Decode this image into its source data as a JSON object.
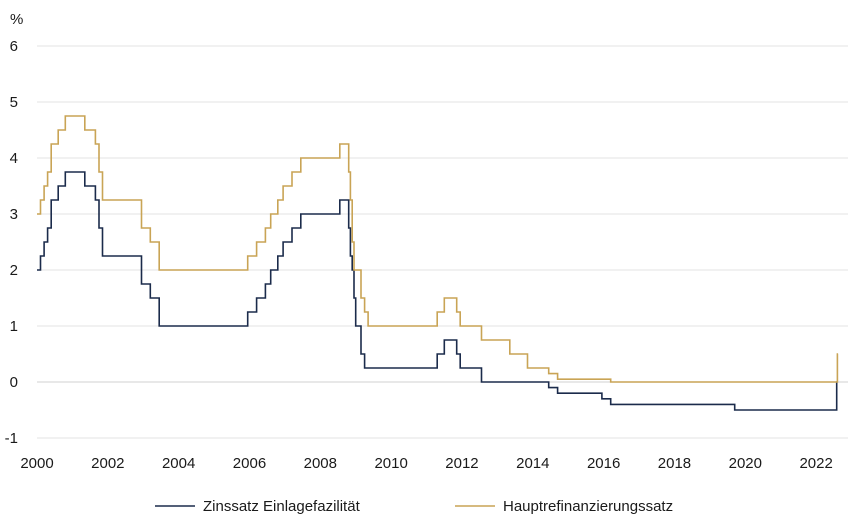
{
  "chart_data": {
    "type": "line",
    "title": "",
    "xlabel": "",
    "ylabel": "%",
    "xlim": [
      2000,
      2022.9
    ],
    "ylim": [
      -1,
      6
    ],
    "x_ticks": [
      "2000",
      "2002",
      "2004",
      "2006",
      "2008",
      "2010",
      "2012",
      "2014",
      "2016",
      "2018",
      "2020",
      "2022"
    ],
    "y_ticks": [
      "-1",
      "0",
      "1",
      "2",
      "3",
      "4",
      "5",
      "6"
    ],
    "grid": "horizontal",
    "legend_position": "bottom",
    "series": [
      {
        "name": "Zinssatz Einlagefazilität",
        "color": "#1b2b4b",
        "step": true,
        "points": [
          [
            2000.0,
            2.0
          ],
          [
            2000.1,
            2.25
          ],
          [
            2000.2,
            2.5
          ],
          [
            2000.3,
            2.75
          ],
          [
            2000.4,
            3.25
          ],
          [
            2000.6,
            3.5
          ],
          [
            2000.8,
            3.75
          ],
          [
            2001.35,
            3.5
          ],
          [
            2001.65,
            3.25
          ],
          [
            2001.75,
            2.75
          ],
          [
            2001.85,
            2.25
          ],
          [
            2002.95,
            1.75
          ],
          [
            2003.2,
            1.5
          ],
          [
            2003.45,
            1.0
          ],
          [
            2005.95,
            1.25
          ],
          [
            2006.2,
            1.5
          ],
          [
            2006.45,
            1.75
          ],
          [
            2006.6,
            2.0
          ],
          [
            2006.8,
            2.25
          ],
          [
            2006.95,
            2.5
          ],
          [
            2007.2,
            2.75
          ],
          [
            2007.45,
            3.0
          ],
          [
            2008.55,
            3.25
          ],
          [
            2008.8,
            2.75
          ],
          [
            2008.85,
            2.25
          ],
          [
            2008.9,
            2.0
          ],
          [
            2008.95,
            1.5
          ],
          [
            2009.0,
            1.0
          ],
          [
            2009.15,
            0.5
          ],
          [
            2009.25,
            0.25
          ],
          [
            2011.3,
            0.5
          ],
          [
            2011.5,
            0.75
          ],
          [
            2011.85,
            0.5
          ],
          [
            2011.95,
            0.25
          ],
          [
            2012.55,
            0.0
          ],
          [
            2014.45,
            -0.1
          ],
          [
            2014.7,
            -0.2
          ],
          [
            2015.95,
            -0.3
          ],
          [
            2016.2,
            -0.4
          ],
          [
            2019.7,
            -0.5
          ],
          [
            2022.55,
            -0.5
          ],
          [
            2022.58,
            0.0
          ],
          [
            2022.6,
            0.0
          ]
        ]
      },
      {
        "name": "Hauptrefinanzierungssatz",
        "color": "#c9a455",
        "step": true,
        "points": [
          [
            2000.0,
            3.0
          ],
          [
            2000.1,
            3.25
          ],
          [
            2000.2,
            3.5
          ],
          [
            2000.3,
            3.75
          ],
          [
            2000.4,
            4.25
          ],
          [
            2000.6,
            4.5
          ],
          [
            2000.8,
            4.75
          ],
          [
            2001.35,
            4.5
          ],
          [
            2001.65,
            4.25
          ],
          [
            2001.75,
            3.75
          ],
          [
            2001.85,
            3.25
          ],
          [
            2002.95,
            2.75
          ],
          [
            2003.2,
            2.5
          ],
          [
            2003.45,
            2.0
          ],
          [
            2005.95,
            2.25
          ],
          [
            2006.2,
            2.5
          ],
          [
            2006.45,
            2.75
          ],
          [
            2006.6,
            3.0
          ],
          [
            2006.8,
            3.25
          ],
          [
            2006.95,
            3.5
          ],
          [
            2007.2,
            3.75
          ],
          [
            2007.45,
            4.0
          ],
          [
            2008.55,
            4.25
          ],
          [
            2008.8,
            3.75
          ],
          [
            2008.85,
            3.25
          ],
          [
            2008.9,
            2.5
          ],
          [
            2008.95,
            2.0
          ],
          [
            2009.15,
            1.5
          ],
          [
            2009.25,
            1.25
          ],
          [
            2009.35,
            1.0
          ],
          [
            2011.3,
            1.25
          ],
          [
            2011.5,
            1.5
          ],
          [
            2011.85,
            1.25
          ],
          [
            2011.95,
            1.0
          ],
          [
            2012.55,
            0.75
          ],
          [
            2013.35,
            0.5
          ],
          [
            2013.85,
            0.25
          ],
          [
            2014.45,
            0.15
          ],
          [
            2014.7,
            0.05
          ],
          [
            2016.2,
            0.0
          ],
          [
            2022.55,
            0.0
          ],
          [
            2022.6,
            0.5
          ],
          [
            2022.62,
            0.5
          ]
        ]
      }
    ]
  }
}
